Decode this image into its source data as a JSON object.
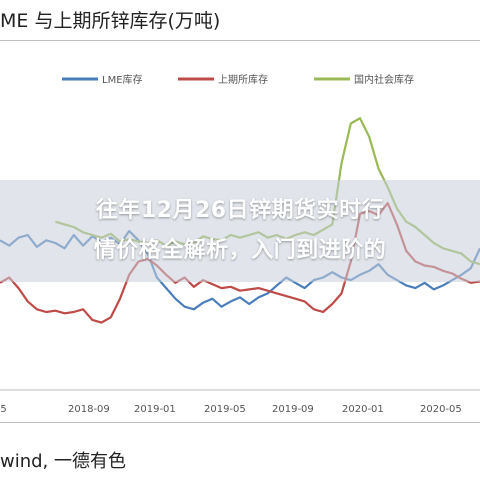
{
  "page": {
    "title": "ME 与上期所锌库存(万吨)",
    "source": "wind, 一德有色"
  },
  "overlay": {
    "line1": "往年12月26日锌期货实时行",
    "line2": "情价格全解析，入门到进阶的"
  },
  "colors": {
    "lme": "#4a7ebb",
    "shfe": "#be4b48",
    "social": "#98b954",
    "axis": "#bdbdbd"
  },
  "chart_data": {
    "type": "line",
    "title": "ME 与上期所锌库存(万吨)",
    "legend_position": "top",
    "x_ticks": [
      "05",
      "2018-09",
      "2019-01",
      "2019-05",
      "2019-09",
      "2020-01",
      "2020-05"
    ],
    "series": [
      {
        "name": "LME库存",
        "color": "#4a7ebb",
        "values": [
          20.6,
          20.2,
          20.8,
          21.0,
          20.1,
          20.6,
          20.4,
          20.0,
          21.0,
          20.2,
          20.9,
          20.5,
          20.8,
          20.3,
          21.3,
          20.6,
          19.6,
          17.8,
          17.0,
          16.2,
          15.6,
          15.4,
          15.9,
          16.2,
          15.6,
          16.0,
          16.3,
          15.8,
          16.3,
          16.6,
          17.2,
          17.8,
          17.4,
          17.0,
          17.6,
          17.8,
          18.2,
          17.8,
          17.6,
          18.0,
          18.3,
          18.8,
          18.0,
          17.6,
          17.2,
          17.0,
          17.4,
          16.9,
          17.2,
          17.6,
          18.0,
          18.5,
          20.0
        ]
      },
      {
        "name": "上期所库存",
        "color": "#be4b48",
        "values": [
          17.4,
          17.8,
          17.0,
          16.0,
          15.4,
          15.2,
          15.3,
          15.1,
          15.2,
          15.4,
          14.6,
          14.4,
          14.8,
          16.2,
          18.0,
          19.0,
          19.2,
          18.7,
          18.0,
          17.4,
          17.8,
          17.1,
          17.6,
          17.3,
          17.0,
          17.1,
          16.8,
          16.9,
          17.0,
          16.8,
          16.6,
          16.4,
          16.2,
          16.0,
          15.4,
          15.2,
          15.8,
          16.6,
          19.0,
          22.6,
          22.8,
          22.5,
          23.4,
          21.8,
          19.8,
          19.0,
          18.7,
          18.6,
          18.3,
          18.1,
          17.7,
          17.4,
          17.5
        ]
      },
      {
        "name": "国内社会库存",
        "color": "#98b954",
        "values": [
          null,
          null,
          null,
          null,
          null,
          null,
          22.0,
          21.8,
          21.6,
          21.2,
          21.0,
          20.8,
          21.1,
          20.5,
          20.7,
          20.5,
          20.4,
          20.6,
          20.2,
          20.5,
          20.3,
          20.4,
          20.9,
          20.7,
          20.6,
          21.0,
          20.8,
          21.0,
          21.2,
          20.8,
          21.0,
          20.7,
          21.0,
          21.2,
          21.0,
          21.4,
          21.8,
          26.4,
          29.4,
          29.8,
          28.4,
          26.0,
          24.6,
          23.0,
          22.0,
          21.6,
          21.0,
          20.4,
          20.0,
          19.8,
          19.6,
          19.0,
          18.8
        ]
      }
    ]
  }
}
